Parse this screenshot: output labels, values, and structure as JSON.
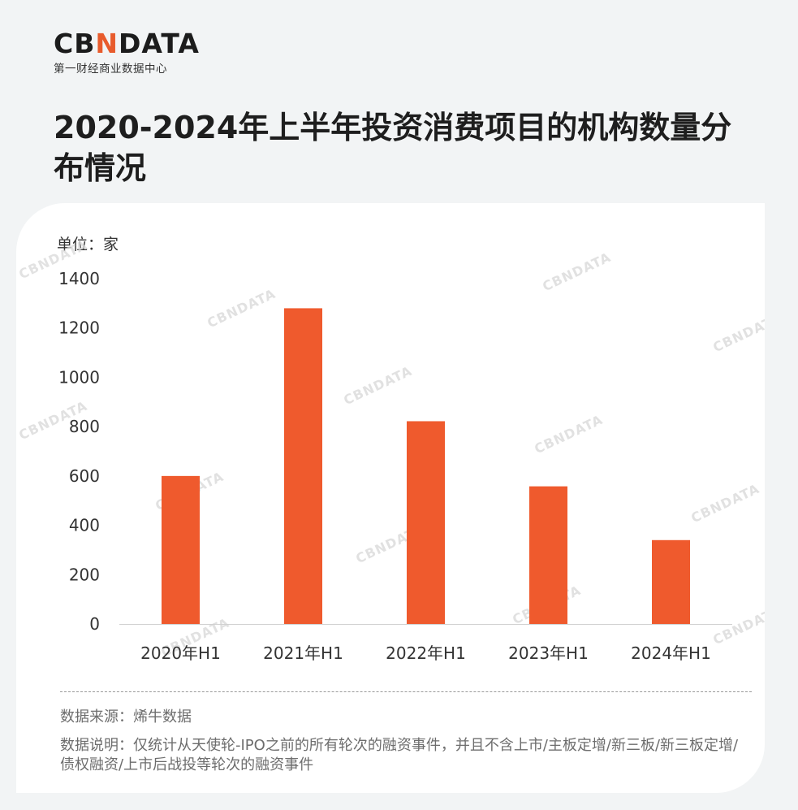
{
  "logo": {
    "mark_a": "CB",
    "mark_n": "N",
    "mark_b": "DATA",
    "sub": "第一财经商业数据中心"
  },
  "title": "2020-2024年上半年投资消费项目的机构数量分布情况",
  "unit_label": "单位：家",
  "watermark_text": "CBNDATA",
  "source": "数据来源：烯牛数据",
  "note": "数据说明：仅统计从天使轮-IPO之前的所有轮次的融资事件，并且不含上市/主板定增/新三板/新三板定增/债权融资/上市后战投等轮次的融资事件",
  "colors": {
    "bar": "#ef5a2d",
    "accent": "#e85b2c",
    "axis_text": "#333333"
  },
  "chart_data": {
    "type": "bar",
    "categories": [
      "2020年H1",
      "2021年H1",
      "2022年H1",
      "2023年H1",
      "2024年H1"
    ],
    "values": [
      600,
      1280,
      822,
      558,
      340
    ],
    "y_ticks": [
      0,
      200,
      400,
      600,
      800,
      1000,
      1200,
      1400
    ],
    "ylim": [
      0,
      1400
    ],
    "grid": false,
    "legend": "none"
  }
}
